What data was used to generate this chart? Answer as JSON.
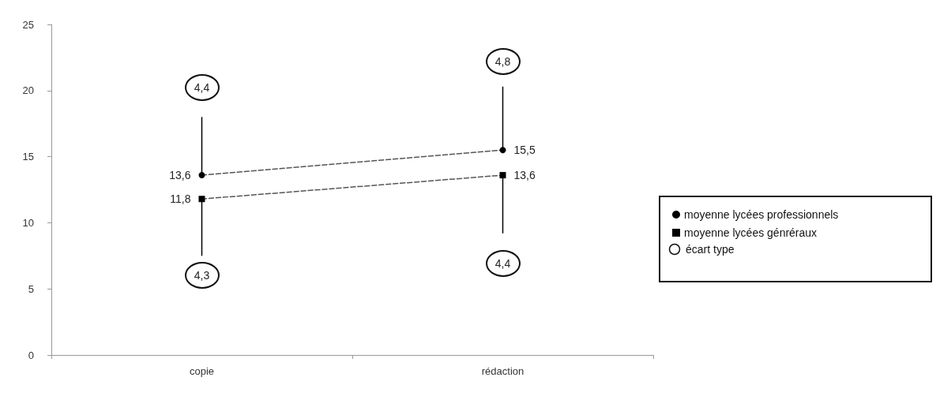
{
  "chart_data": {
    "type": "line",
    "categories": [
      "copie",
      "rédaction"
    ],
    "series": [
      {
        "name": "moyenne lycées professionnels",
        "color": "#000000",
        "marker": "circle",
        "values": [
          13.6,
          15.5
        ],
        "value_labels": [
          "13,6",
          "15,5"
        ],
        "errors": [
          [
            13.6,
            18
          ],
          [
            15.5,
            20.3
          ]
        ]
      },
      {
        "name": "moyenne lycées génréraux",
        "color": "#000000",
        "marker": "square",
        "values": [
          11.8,
          13.6
        ],
        "value_labels": [
          "11,8",
          "13,6"
        ],
        "errors": [
          [
            7.5,
            11.8
          ],
          [
            9.2,
            13.6
          ]
        ]
      }
    ],
    "line_style": "dashed",
    "ylim": [
      0,
      25
    ],
    "yticks": [
      0,
      5,
      10,
      15,
      20,
      25
    ],
    "grid": false,
    "legend": "right",
    "annotations": [
      {
        "text": "4,4",
        "x": "copie",
        "y": 20.2
      },
      {
        "text": "4,3",
        "x": "copie",
        "y": 6
      },
      {
        "text": "4,8",
        "x": "rédaction",
        "y": 22.2
      },
      {
        "text": "4,4",
        "x": "rédaction",
        "y": 6.9
      },
      "écart type"
    ]
  }
}
